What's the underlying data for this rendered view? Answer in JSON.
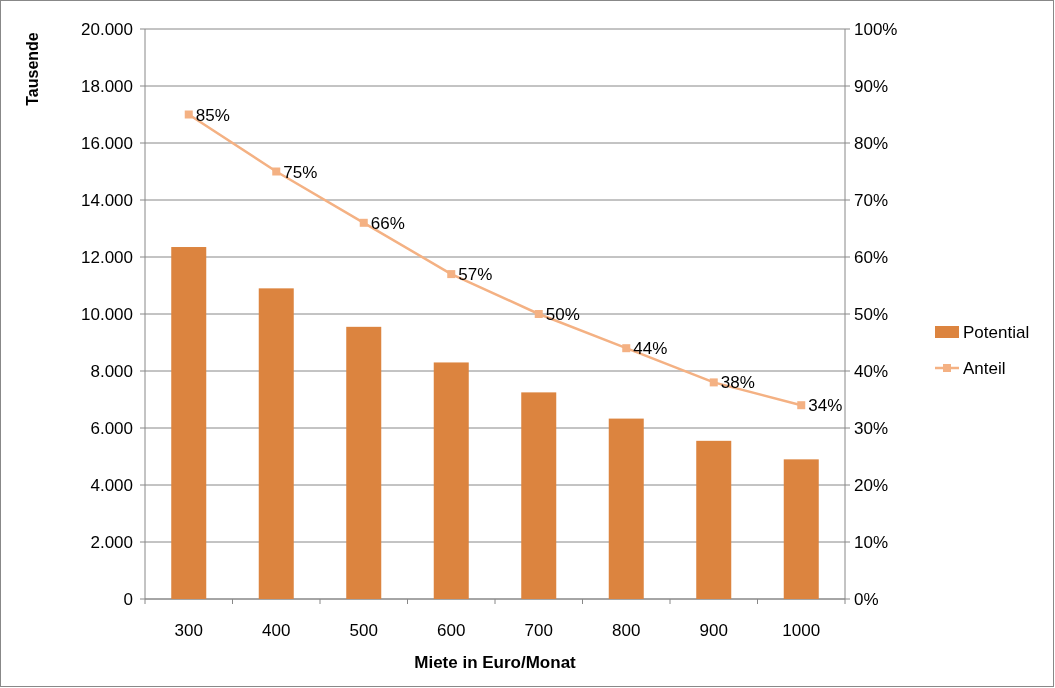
{
  "chart_data": {
    "type": "bar",
    "xlabel": "Miete in Euro/Monat",
    "ylabel": "Tausende",
    "categories": [
      "300",
      "400",
      "500",
      "600",
      "700",
      "800",
      "900",
      "1000"
    ],
    "series": [
      {
        "name": "Potential",
        "color": "#dc843f",
        "values": [
          12350,
          10900,
          9550,
          8300,
          7250,
          6330,
          5550,
          4900
        ]
      },
      {
        "name": "Anteil",
        "type": "line",
        "axis": "y2",
        "color": "#f4b183",
        "marker": "square",
        "values": [
          85,
          75,
          66,
          57,
          50,
          44,
          38,
          34
        ],
        "value_labels": [
          "85%",
          "75%",
          "66%",
          "57%",
          "50%",
          "44%",
          "38%",
          "34%"
        ]
      }
    ],
    "ylim": [
      0,
      20000
    ],
    "yticks": [
      {
        "value": 0,
        "label": "0"
      },
      {
        "value": 2000,
        "label": "2.000"
      },
      {
        "value": 4000,
        "label": "4.000"
      },
      {
        "value": 6000,
        "label": "6.000"
      },
      {
        "value": 8000,
        "label": "8.000"
      },
      {
        "value": 10000,
        "label": "10.000"
      },
      {
        "value": 12000,
        "label": "12.000"
      },
      {
        "value": 14000,
        "label": "14.000"
      },
      {
        "value": 16000,
        "label": "16.000"
      },
      {
        "value": 18000,
        "label": "18.000"
      },
      {
        "value": 20000,
        "label": "20.000"
      }
    ],
    "y2lim": [
      0,
      100
    ],
    "y2ticks": [
      {
        "value": 0,
        "label": "0%"
      },
      {
        "value": 10,
        "label": "10%"
      },
      {
        "value": 20,
        "label": "20%"
      },
      {
        "value": 30,
        "label": "30%"
      },
      {
        "value": 40,
        "label": "40%"
      },
      {
        "value": 50,
        "label": "50%"
      },
      {
        "value": 60,
        "label": "60%"
      },
      {
        "value": 70,
        "label": "70%"
      },
      {
        "value": 80,
        "label": "80%"
      },
      {
        "value": 90,
        "label": "90%"
      },
      {
        "value": 100,
        "label": "100%"
      }
    ],
    "grid": "y",
    "legend": "right"
  }
}
